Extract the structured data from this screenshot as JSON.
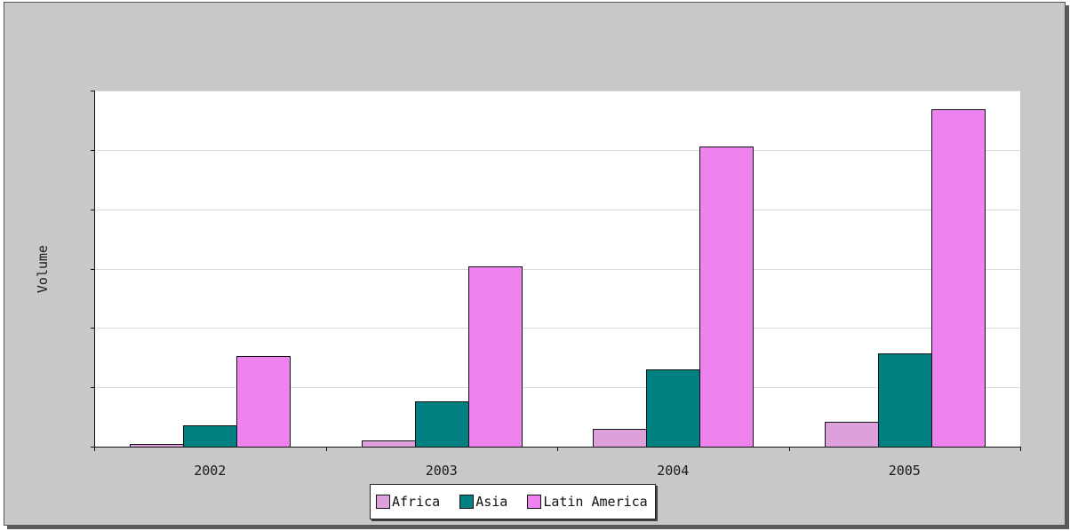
{
  "chart_data": {
    "type": "bar",
    "title": "",
    "xlabel": "",
    "ylabel": "Volume",
    "categories": [
      "2002",
      "2003",
      "2004",
      "2005"
    ],
    "series": [
      {
        "name": "Africa",
        "color": "#dda0dd",
        "values": [
          5,
          10,
          30,
          42
        ]
      },
      {
        "name": "Asia",
        "color": "#008080",
        "values": [
          36,
          76,
          130,
          157
        ]
      },
      {
        "name": "Latin America",
        "color": "#ee82ee",
        "values": [
          153,
          303,
          505,
          568
        ]
      }
    ],
    "ylim": [
      0,
      600
    ],
    "y_tick_count": 6,
    "y_tick_labels_shown": false,
    "grid": true,
    "legend_position": "bottom-center"
  }
}
